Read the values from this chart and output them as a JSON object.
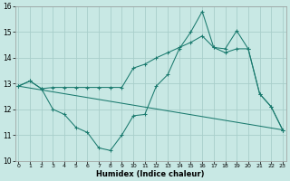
{
  "xlabel": "Humidex (Indice chaleur)",
  "xlim": [
    0,
    23
  ],
  "ylim": [
    10,
    16
  ],
  "yticks": [
    10,
    11,
    12,
    13,
    14,
    15,
    16
  ],
  "xticks": [
    0,
    1,
    2,
    3,
    4,
    5,
    6,
    7,
    8,
    9,
    10,
    11,
    12,
    13,
    14,
    15,
    16,
    17,
    18,
    19,
    20,
    21,
    22,
    23
  ],
  "bg_color": "#c8e8e4",
  "grid_color": "#a8ceca",
  "line_color": "#1a7a6e",
  "line1_x": [
    0,
    1,
    2,
    3,
    4,
    5,
    6,
    7,
    8,
    9,
    10,
    11,
    12,
    13,
    14,
    15,
    16,
    17,
    18,
    19,
    20,
    21,
    22,
    23
  ],
  "line1_y": [
    12.9,
    13.1,
    12.8,
    12.0,
    11.8,
    11.3,
    11.1,
    10.5,
    10.4,
    11.0,
    11.75,
    11.8,
    12.9,
    13.35,
    14.35,
    15.0,
    15.8,
    14.4,
    14.35,
    15.05,
    14.35,
    12.6,
    12.1,
    11.2
  ],
  "line2_x": [
    0,
    1,
    2,
    3,
    4,
    5,
    6,
    7,
    8,
    9,
    10,
    11,
    12,
    13,
    14,
    15,
    16,
    17,
    18,
    19,
    20,
    21,
    22,
    23
  ],
  "line2_y": [
    12.9,
    13.1,
    12.8,
    12.85,
    12.85,
    12.85,
    12.85,
    12.85,
    12.85,
    12.85,
    13.6,
    13.75,
    14.0,
    14.2,
    14.4,
    14.6,
    14.85,
    14.4,
    14.2,
    14.35,
    14.35,
    12.6,
    12.1,
    11.2
  ],
  "line3_x": [
    0,
    23
  ],
  "line3_y": [
    12.9,
    11.2
  ]
}
